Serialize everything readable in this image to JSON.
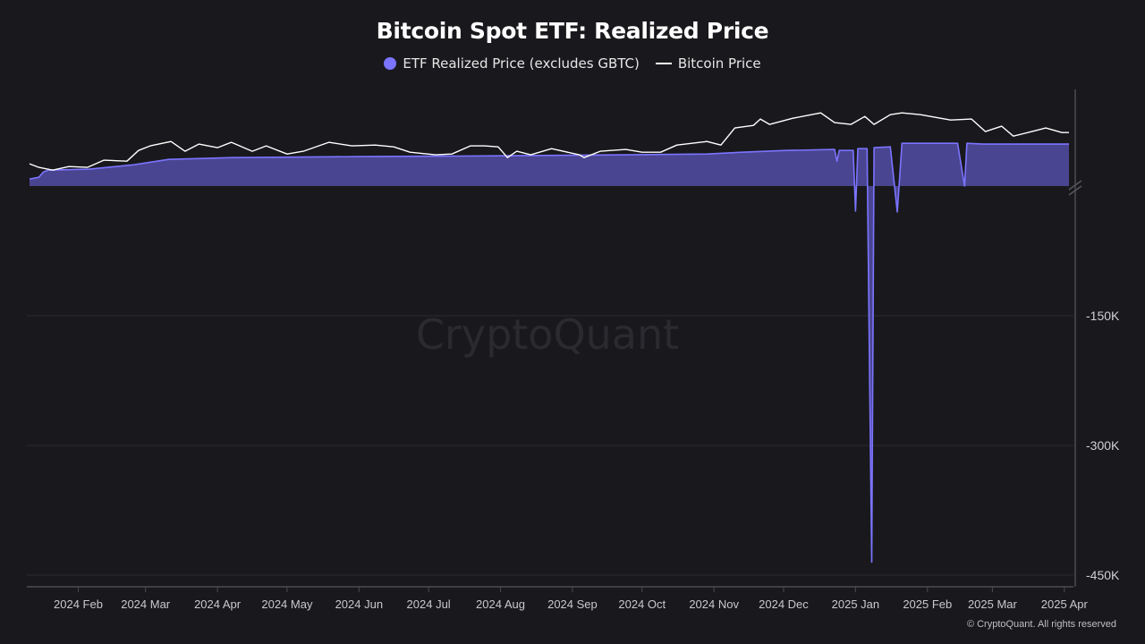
{
  "chart_data": {
    "type": "area",
    "title": "Bitcoin Spot ETF: Realized Price",
    "legend_position": "top",
    "y_axis_break": true,
    "y_ticks": [
      {
        "value": -150000,
        "label": "-150K"
      },
      {
        "value": -300000,
        "label": "-300K"
      },
      {
        "value": -450000,
        "label": "-450K"
      }
    ],
    "x_ticks": [
      {
        "date": "2024-02-01",
        "label": "2024 Feb"
      },
      {
        "date": "2024-03-01",
        "label": "2024 Mar"
      },
      {
        "date": "2024-04-01",
        "label": "2024 Apr"
      },
      {
        "date": "2024-05-01",
        "label": "2024 May"
      },
      {
        "date": "2024-06-01",
        "label": "2024 Jun"
      },
      {
        "date": "2024-07-01",
        "label": "2024 Jul"
      },
      {
        "date": "2024-08-01",
        "label": "2024 Aug"
      },
      {
        "date": "2024-09-01",
        "label": "2024 Sep"
      },
      {
        "date": "2024-10-01",
        "label": "2024 Oct"
      },
      {
        "date": "2024-11-01",
        "label": "2024 Nov"
      },
      {
        "date": "2024-12-01",
        "label": "2024 Dec"
      },
      {
        "date": "2025-01-01",
        "label": "2025 Jan"
      },
      {
        "date": "2025-02-01",
        "label": "2025 Feb"
      },
      {
        "date": "2025-03-01",
        "label": "2025 Mar"
      },
      {
        "date": "2025-04-01",
        "label": "2025 Apr"
      }
    ],
    "x_range": [
      "2024-01-11",
      "2025-04-03"
    ],
    "series": [
      {
        "name": "ETF Realized Price (excludes GBTC)",
        "color": "#7b74ff",
        "fill": "#4a4590",
        "style": "area",
        "points": [
          [
            "2024-01-11",
            29200
          ],
          [
            "2024-01-15",
            31300
          ],
          [
            "2024-01-17",
            37600
          ],
          [
            "2024-01-19",
            39700
          ],
          [
            "2024-02-06",
            40800
          ],
          [
            "2024-02-25",
            46000
          ],
          [
            "2024-03-11",
            52300
          ],
          [
            "2024-04-07",
            54400
          ],
          [
            "2024-05-31",
            55500
          ],
          [
            "2024-08-01",
            56500
          ],
          [
            "2024-09-24",
            57600
          ],
          [
            "2024-10-29",
            58600
          ],
          [
            "2024-11-13",
            60700
          ],
          [
            "2024-12-02",
            62800
          ],
          [
            "2024-12-23",
            63900
          ],
          [
            "2024-12-24",
            50200
          ],
          [
            "2024-12-25",
            62800
          ],
          [
            "2024-12-31",
            62800
          ],
          [
            "2025-01-01",
            -29000
          ],
          [
            "2025-01-02",
            64900
          ],
          [
            "2025-01-06",
            64900
          ],
          [
            "2025-01-08",
            -435000
          ],
          [
            "2025-01-09",
            66000
          ],
          [
            "2025-01-16",
            67000
          ],
          [
            "2025-01-19",
            -30000
          ],
          [
            "2025-01-21",
            71200
          ],
          [
            "2025-02-14",
            71200
          ],
          [
            "2025-02-17",
            0
          ],
          [
            "2025-02-18",
            71200
          ],
          [
            "2025-02-25",
            70200
          ],
          [
            "2025-04-03",
            70200
          ]
        ]
      },
      {
        "name": "Bitcoin Price",
        "color": "#ffffff",
        "style": "line",
        "points": [
          [
            "2024-01-11",
            47100
          ],
          [
            "2024-01-15",
            42900
          ],
          [
            "2024-01-21",
            39700
          ],
          [
            "2024-01-28",
            43900
          ],
          [
            "2024-02-05",
            42900
          ],
          [
            "2024-02-12",
            51300
          ],
          [
            "2024-02-22",
            50200
          ],
          [
            "2024-02-27",
            62800
          ],
          [
            "2024-03-03",
            68100
          ],
          [
            "2024-03-12",
            73300
          ],
          [
            "2024-03-18",
            61800
          ],
          [
            "2024-03-24",
            70200
          ],
          [
            "2024-04-01",
            66000
          ],
          [
            "2024-04-07",
            72300
          ],
          [
            "2024-04-16",
            61800
          ],
          [
            "2024-04-22",
            68100
          ],
          [
            "2024-05-01",
            58600
          ],
          [
            "2024-05-08",
            61800
          ],
          [
            "2024-05-19",
            72300
          ],
          [
            "2024-05-29",
            68100
          ],
          [
            "2024-06-08",
            69100
          ],
          [
            "2024-06-16",
            67000
          ],
          [
            "2024-06-23",
            60700
          ],
          [
            "2024-07-04",
            57600
          ],
          [
            "2024-07-11",
            58600
          ],
          [
            "2024-07-19",
            68100
          ],
          [
            "2024-07-25",
            68100
          ],
          [
            "2024-07-31",
            67000
          ],
          [
            "2024-08-04",
            54400
          ],
          [
            "2024-08-08",
            61800
          ],
          [
            "2024-08-14",
            57600
          ],
          [
            "2024-08-23",
            64900
          ],
          [
            "2024-09-04",
            57600
          ],
          [
            "2024-09-06",
            54400
          ],
          [
            "2024-09-13",
            61800
          ],
          [
            "2024-09-24",
            63900
          ],
          [
            "2024-10-01",
            60700
          ],
          [
            "2024-10-09",
            60700
          ],
          [
            "2024-10-16",
            69100
          ],
          [
            "2024-10-29",
            73300
          ],
          [
            "2024-11-04",
            69100
          ],
          [
            "2024-11-10",
            89100
          ],
          [
            "2024-11-18",
            92200
          ],
          [
            "2024-11-21",
            99600
          ],
          [
            "2024-11-25",
            93300
          ],
          [
            "2024-12-05",
            100600
          ],
          [
            "2024-12-17",
            106900
          ],
          [
            "2024-12-23",
            95400
          ],
          [
            "2024-12-30",
            93300
          ],
          [
            "2025-01-05",
            102700
          ],
          [
            "2025-01-09",
            93300
          ],
          [
            "2025-01-16",
            104800
          ],
          [
            "2025-01-21",
            106900
          ],
          [
            "2025-01-29",
            104800
          ],
          [
            "2025-02-11",
            98500
          ],
          [
            "2025-02-20",
            99600
          ],
          [
            "2025-02-26",
            84900
          ],
          [
            "2025-03-05",
            91200
          ],
          [
            "2025-03-10",
            79600
          ],
          [
            "2025-03-18",
            84900
          ],
          [
            "2025-03-24",
            89100
          ],
          [
            "2025-03-31",
            83800
          ],
          [
            "2025-04-03",
            83800
          ]
        ]
      }
    ]
  },
  "watermark": "CryptoQuant",
  "copyright": "© CryptoQuant. All rights reserved"
}
